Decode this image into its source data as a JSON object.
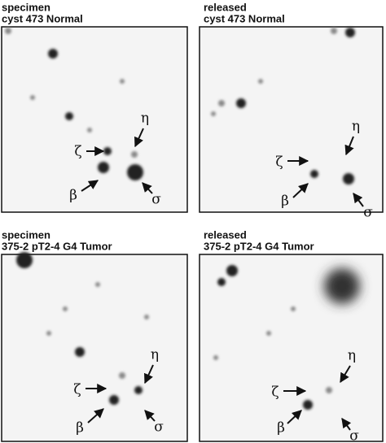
{
  "panels": [
    {
      "title": [
        "specimen",
        "cyst 473 Normal"
      ],
      "markers": [
        "ζ",
        "η",
        "β",
        "σ"
      ]
    },
    {
      "title": [
        "released",
        "cyst 473 Normal"
      ],
      "markers": [
        "ζ",
        "η",
        "β",
        "σ"
      ]
    },
    {
      "title": [
        "specimen",
        "375-2 pT2-4 G4 Tumor"
      ],
      "markers": [
        "ζ",
        "η",
        "β",
        "σ"
      ]
    },
    {
      "title": [
        "released",
        "375-2 pT2-4 G4 Tumor"
      ],
      "markers": [
        "ζ",
        "η",
        "β",
        "σ"
      ]
    }
  ]
}
